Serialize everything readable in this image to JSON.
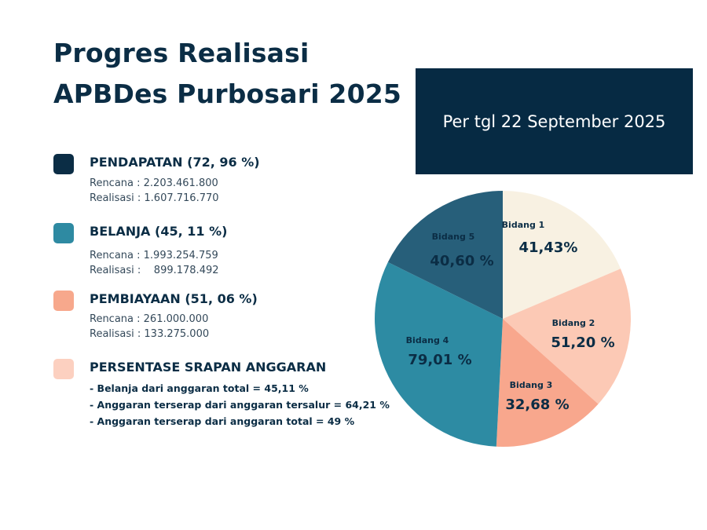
{
  "header": {
    "title_line1": "Progres Realisasi",
    "title_line2": "APBDes Purbosari 2025",
    "date_label": "Per tgl 22 September 2025"
  },
  "legend": {
    "pendapatan": {
      "label": "PENDAPATAN (72, 96 %)",
      "color": "#0b2d45",
      "rencana": "Rencana : 2.203.461.800",
      "realisasi": "Realisasi : 1.607.716.770"
    },
    "belanja": {
      "label": "BELANJA (45, 11 %)",
      "color": "#2e8aa2",
      "rencana": "Rencana : 1.993.254.759",
      "realisasi": "Realisasi :    899.178.492"
    },
    "pembiayaan": {
      "label": "PEMBIAYAAN (51, 06 %)",
      "color": "#f7a88c",
      "rencana": "Rencana : 261.000.000",
      "realisasi": "Realisasi : 133.275.000"
    },
    "serapan": {
      "label": "PERSENTASE SRAPAN ANGGARAN",
      "color": "#fcd0c0",
      "items": [
        "- Belanja dari anggaran total = 45,11 %",
        "- Anggaran terserap dari anggaran tersalur = 64,21 %",
        "- Anggaran terserap dari anggaran total = 49 %"
      ]
    }
  },
  "chart_data": {
    "type": "pie",
    "title": "",
    "start_angle_deg": 0,
    "direction": "clockwise",
    "slices": [
      {
        "label": "Bidang 1",
        "value_label": "41,43%",
        "share": 0.186,
        "color": "#f8f1e2",
        "text_color": "#0b2d45"
      },
      {
        "label": "Bidang 2",
        "value_label": "51,20 %",
        "share": 0.18,
        "color": "#fcc9b5",
        "text_color": "#0b2d45"
      },
      {
        "label": "Bidang 3",
        "value_label": "32,68 %",
        "share": 0.142,
        "color": "#f8a78d",
        "text_color": "#0b2d45"
      },
      {
        "label": "Bidang 4",
        "value_label": "79,01 %",
        "share": 0.315,
        "color": "#2d8ba3",
        "text_color": "#0b2d45"
      },
      {
        "label": "Bidang 5",
        "value_label": "40,60 %",
        "share": 0.177,
        "color": "#275f7a",
        "text_color": "#0b2d45"
      }
    ]
  }
}
